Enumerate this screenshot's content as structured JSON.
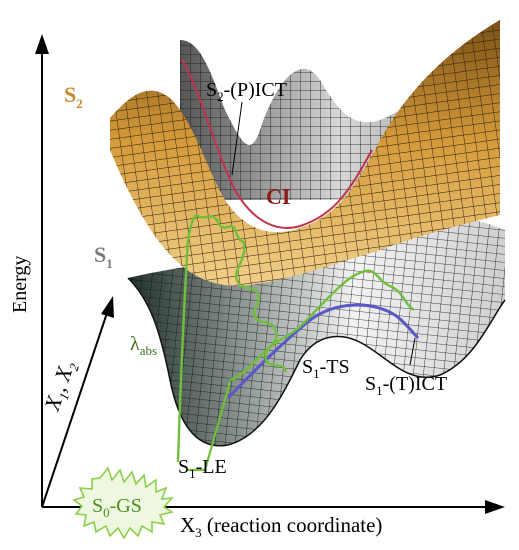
{
  "axes": {
    "y_label": "Energy",
    "x_label_main": "X",
    "x_label_sub": "3",
    "x_label_rest": " (reaction coordinate)",
    "diag_label_a": "X",
    "diag_sub_a": "1",
    "diag_sep": ", X",
    "diag_sub_b": "2"
  },
  "labels": {
    "s2_main": "S",
    "s2_sub": "2",
    "s1_main": "S",
    "s1_sub": "1",
    "s2_pict_main": "S",
    "s2_pict_sub": "2",
    "s2_pict_rest": "-(P)ICT",
    "ci": "CI",
    "lambda": "λ",
    "lambda_sub": "abs",
    "s1_ts_main": "S",
    "s1_ts_sub": "1",
    "s1_ts_rest": "-TS",
    "s1_tict_main": "S",
    "s1_tict_sub": "1",
    "s1_tict_rest": "-(T)ICT",
    "s1_le_main": "S",
    "s1_le_sub": "1",
    "s1_le_rest": "-LE",
    "s0_main": "S",
    "s0_sub": "0",
    "s0_rest": "-GS"
  },
  "colors": {
    "s2_surface": "#c8922a",
    "s1_surface": "#e8e8e8",
    "s1_dark": "#2a3a33",
    "mesh": "#1a1a1a",
    "ci_line": "#c0334a",
    "path_green": "#6fbf3a",
    "path_blue": "#5a58c8",
    "s2_label": "#c9872b",
    "s1_label": "#7a7a7a",
    "ci_label": "#8b1a1a",
    "s0_fill": "#eef7df",
    "s0_border": "#8ccf4a"
  }
}
